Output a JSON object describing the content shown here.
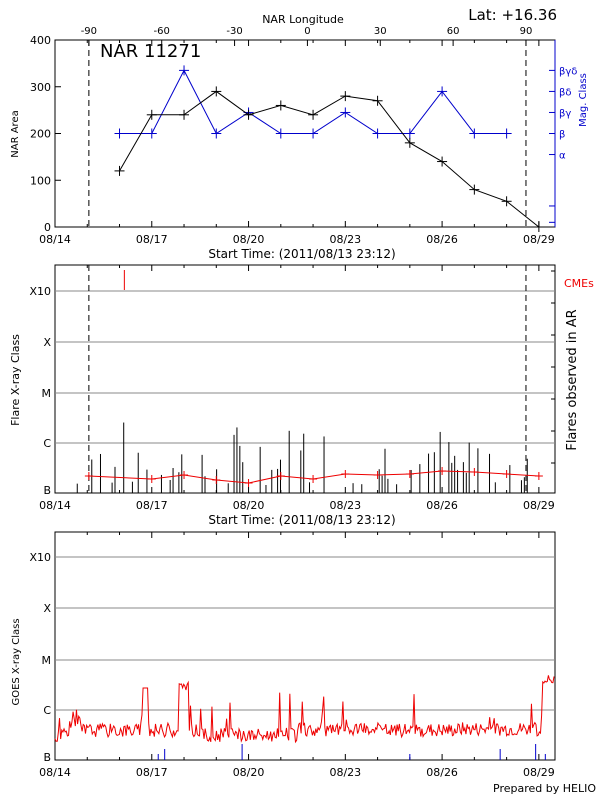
{
  "header": {
    "lat_text": "Lat: +16.36",
    "top_axis_label": "NAR Longitude",
    "footer": "Prepared by HELIO"
  },
  "colors": {
    "blue": "#0000cc",
    "red": "#ee0000",
    "black": "#000000",
    "grid": "#888888"
  },
  "x_dates": [
    "08/14",
    "08/17",
    "08/20",
    "08/23",
    "08/26",
    "08/29"
  ],
  "chart_data": [
    {
      "type": "line",
      "name": "area-panel",
      "title": "NAR 11271",
      "xlabel": "Start Time: (2011/08/13 23:12)",
      "ylabel": "NAR Area",
      "y2label": "Mag. Class",
      "xlim_days": [
        0,
        15.5
      ],
      "ylim": [
        0,
        400
      ],
      "y_ticks": [
        0,
        100,
        200,
        300,
        400
      ],
      "longitude_ticks": [
        -90,
        -60,
        -30,
        0,
        30,
        60,
        90
      ],
      "dashed_days": [
        1.05,
        14.6
      ],
      "series": [
        {
          "name": "NAR Area",
          "x": [
            2.0,
            3.0,
            4.0,
            5.0,
            6.0,
            7.0,
            8.0,
            9.0,
            10.0,
            11.0,
            12.0,
            13.0,
            14.0,
            15.0
          ],
          "values": [
            120,
            240,
            240,
            290,
            240,
            260,
            240,
            280,
            270,
            180,
            140,
            80,
            55,
            0
          ]
        },
        {
          "name": "Mag. Class",
          "x": [
            2.0,
            3.0,
            4.0,
            5.0,
            6.0,
            7.0,
            8.0,
            9.0,
            10.0,
            11.0,
            12.0,
            13.0,
            14.0
          ],
          "values": [
            "β",
            "β",
            "βγδ",
            "β",
            "βγ",
            "β",
            "β",
            "βγ",
            "β",
            "β",
            "βδ",
            "β",
            "β"
          ]
        }
      ],
      "mag_classes": [
        "α",
        "β",
        "βγ",
        "βδ",
        "βγδ"
      ]
    },
    {
      "type": "bar",
      "name": "flare-panel",
      "xlabel": "Start Time: (2011/08/13 23:12)",
      "ylabel": "Flare X-ray Class",
      "y2label": "Flares observed in AR",
      "class_labels": [
        "B",
        "C",
        "M",
        "X",
        "X10"
      ],
      "cme_label": "CMEs",
      "cme_days": [
        2.15
      ],
      "dashed_days": [
        1.05,
        14.6
      ]
    },
    {
      "type": "line",
      "name": "goes-panel",
      "ylabel": "GOES X-ray Class",
      "class_labels": [
        "B",
        "C",
        "M",
        "X",
        "X10"
      ]
    }
  ]
}
